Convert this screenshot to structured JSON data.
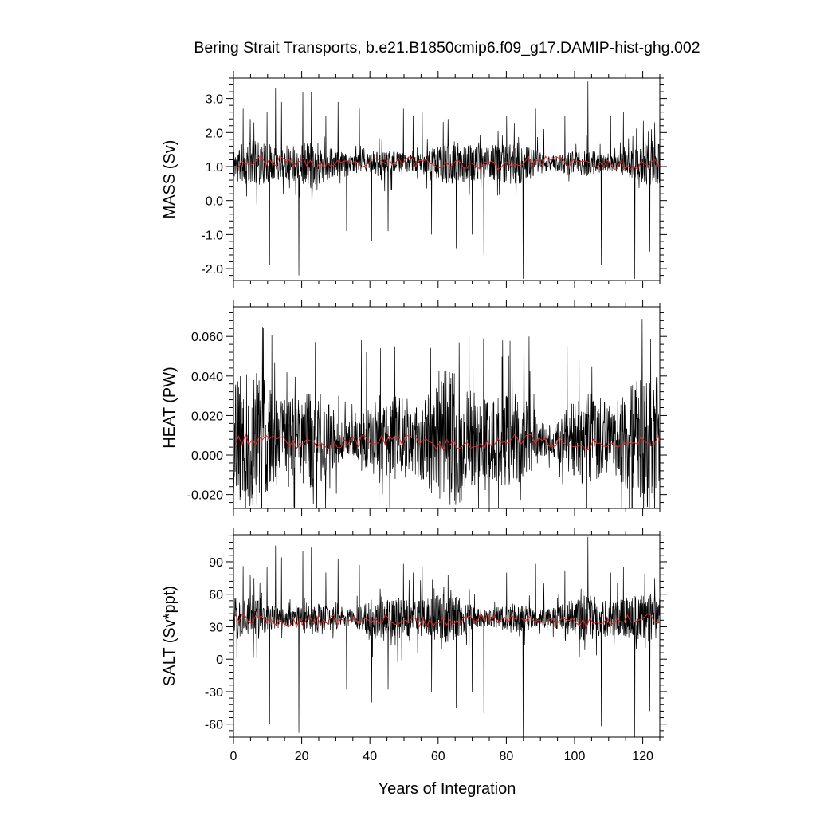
{
  "title": "Bering Strait Transports, b.e21.B1850cmip6.f09_g17.DAMIP-hist-ghg.002",
  "xlabel": "Years of Integration",
  "colors": {
    "monthly": "#000000",
    "annual": "#e8261f",
    "axis": "#000000"
  },
  "chart_data": [
    {
      "type": "line",
      "panel": "mass",
      "ylabel": "MASS (Sv)",
      "xlim": [
        0,
        125
      ],
      "ylim": [
        -2.35,
        3.6
      ],
      "yticks": [
        -2.0,
        -1.0,
        0.0,
        1.0,
        2.0,
        3.0
      ],
      "ytick_labels": [
        "-2.0",
        "-1.0",
        "0.0",
        "1.0",
        "2.0",
        "3.0"
      ],
      "yminor_step": 0.2,
      "xticks": [
        0,
        20,
        40,
        60,
        80,
        100,
        120
      ],
      "xtick_labels": [
        "0",
        "20",
        "40",
        "60",
        "80",
        "100",
        "120"
      ],
      "xminor_step": 5,
      "grid": false,
      "series": [
        {
          "role": "monthly",
          "mean": 1.1,
          "amp": 0.45,
          "seed": 11,
          "spikes": [
            [
              2.8,
              2.7
            ],
            [
              4.9,
              2.4
            ],
            [
              6.0,
              2.3
            ],
            [
              9.8,
              2.6
            ],
            [
              10.6,
              -1.9
            ],
            [
              12.3,
              3.3
            ],
            [
              14.1,
              2.9
            ],
            [
              19.2,
              -2.2
            ],
            [
              20.3,
              3.2
            ],
            [
              22.8,
              3.2
            ],
            [
              27.1,
              2.5
            ],
            [
              30.7,
              2.9
            ],
            [
              33.2,
              -0.9
            ],
            [
              36.9,
              2.7
            ],
            [
              40.5,
              -1.2
            ],
            [
              45.3,
              -0.9
            ],
            [
              49.8,
              2.7
            ],
            [
              52.7,
              2.5
            ],
            [
              55.3,
              2.6
            ],
            [
              58.1,
              -1.0
            ],
            [
              62.9,
              2.4
            ],
            [
              65.3,
              -1.4
            ],
            [
              70.0,
              -1.0
            ],
            [
              73.4,
              -1.6
            ],
            [
              80.1,
              2.5
            ],
            [
              84.9,
              -2.3
            ],
            [
              88.6,
              2.7
            ],
            [
              91.0,
              2.1
            ],
            [
              97.2,
              2.5
            ],
            [
              103.9,
              3.5
            ],
            [
              107.8,
              -1.9
            ],
            [
              110.6,
              2.5
            ],
            [
              114.3,
              2.6
            ],
            [
              117.7,
              -2.3
            ],
            [
              122.1,
              -1.5
            ],
            [
              123.5,
              2.3
            ]
          ]
        },
        {
          "role": "annual",
          "mean": 1.1,
          "amp": 0.15,
          "seed": 23
        }
      ]
    },
    {
      "type": "line",
      "panel": "heat",
      "ylabel": "HEAT (PW)",
      "xlim": [
        0,
        125
      ],
      "ylim": [
        -0.027,
        0.075
      ],
      "yticks": [
        -0.02,
        0.0,
        0.02,
        0.04,
        0.06
      ],
      "ytick_labels": [
        "-0.020",
        "0.000",
        "0.020",
        "0.040",
        "0.060"
      ],
      "yminor_step": 0.004,
      "xticks": [
        0,
        20,
        40,
        60,
        80,
        100,
        120
      ],
      "xtick_labels": [
        "0",
        "20",
        "40",
        "60",
        "80",
        "100",
        "120"
      ],
      "xminor_step": 5,
      "grid": false,
      "series": [
        {
          "role": "monthly",
          "mean": 0.008,
          "amp": 0.022,
          "seed": 37,
          "spikes": [
            [
              37.5,
              0.058
            ],
            [
              39.0,
              0.052
            ],
            [
              47.3,
              0.055
            ],
            [
              66.2,
              0.057
            ],
            [
              69.1,
              0.061
            ],
            [
              73.3,
              0.059
            ],
            [
              78.9,
              0.058
            ],
            [
              85.2,
              0.075
            ],
            [
              86.7,
              0.06
            ],
            [
              97.8,
              0.055
            ],
            [
              101.3,
              0.048
            ],
            [
              23.4,
              -0.025
            ],
            [
              43.7,
              -0.02
            ],
            [
              84.2,
              -0.023
            ],
            [
              103.6,
              -0.027
            ],
            [
              119.6,
              -0.02
            ]
          ]
        },
        {
          "role": "annual",
          "mean": 0.0065,
          "amp": 0.003,
          "seed": 53
        }
      ]
    },
    {
      "type": "line",
      "panel": "salt",
      "ylabel": "SALT (Sv*ppt)",
      "xlim": [
        0,
        125
      ],
      "ylim": [
        -72,
        115
      ],
      "yticks": [
        -60,
        -30,
        0,
        30,
        60,
        90
      ],
      "ytick_labels": [
        "-60",
        "-30",
        "0",
        "30",
        "60",
        "90"
      ],
      "yminor_step": 6,
      "xticks": [
        0,
        20,
        40,
        60,
        80,
        100,
        120
      ],
      "xtick_labels": [
        "0",
        "20",
        "40",
        "60",
        "80",
        "100",
        "120"
      ],
      "xminor_step": 5,
      "grid": false,
      "series": [
        {
          "role": "monthly",
          "mean": 38,
          "amp": 15,
          "seed": 71,
          "spikes": [
            [
              2.8,
              86
            ],
            [
              4.9,
              78
            ],
            [
              6.0,
              75
            ],
            [
              9.8,
              85
            ],
            [
              10.6,
              -60
            ],
            [
              12.3,
              105
            ],
            [
              14.1,
              94
            ],
            [
              19.2,
              -68
            ],
            [
              20.3,
              100
            ],
            [
              22.8,
              103
            ],
            [
              27.1,
              80
            ],
            [
              30.7,
              93
            ],
            [
              33.2,
              -28
            ],
            [
              36.9,
              87
            ],
            [
              40.5,
              -40
            ],
            [
              45.3,
              -28
            ],
            [
              49.8,
              88
            ],
            [
              52.7,
              80
            ],
            [
              55.3,
              85
            ],
            [
              58.1,
              -30
            ],
            [
              62.9,
              78
            ],
            [
              65.3,
              -45
            ],
            [
              70.0,
              -30
            ],
            [
              73.4,
              -50
            ],
            [
              80.1,
              80
            ],
            [
              84.9,
              -72
            ],
            [
              88.6,
              88
            ],
            [
              91.0,
              70
            ],
            [
              97.2,
              82
            ],
            [
              103.9,
              113
            ],
            [
              107.8,
              -62
            ],
            [
              110.6,
              80
            ],
            [
              114.3,
              85
            ],
            [
              117.7,
              -72
            ],
            [
              122.1,
              -48
            ],
            [
              123.5,
              75
            ]
          ]
        },
        {
          "role": "annual",
          "mean": 36,
          "amp": 5,
          "seed": 89
        }
      ]
    }
  ]
}
